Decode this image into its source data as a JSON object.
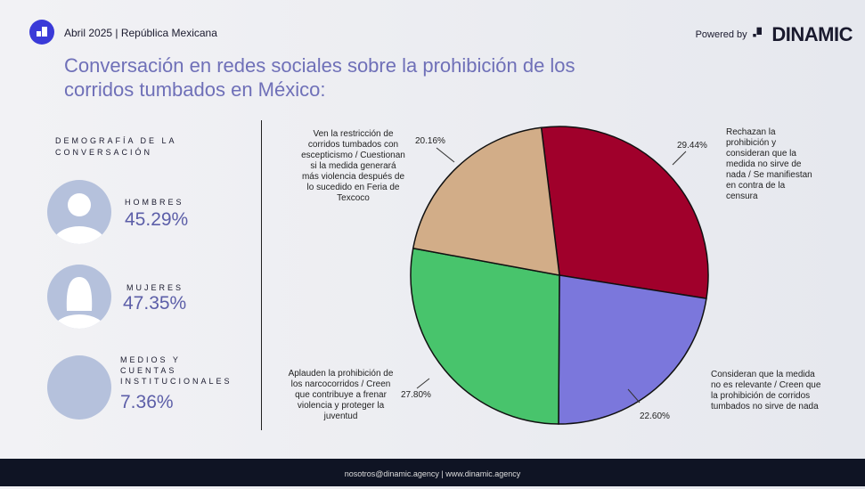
{
  "header": {
    "date_region": "Abril 2025 | República Mexicana",
    "powered_by": "Powered by",
    "brand": "DINAMIC"
  },
  "title": "Conversación en redes sociales sobre la prohibición de los corridos tumbados en México:",
  "demographics": {
    "heading": "DEMOGRAFÍA DE LA CONVERSACIÓN",
    "items": [
      {
        "label": "HOMBRES",
        "value": "45.29%"
      },
      {
        "label": "MUJERES",
        "value": "47.35%"
      },
      {
        "label": "MEDIOS Y CUENTAS INSTITUCIONALES",
        "value": "7.36%"
      }
    ]
  },
  "chart_data": {
    "type": "pie",
    "slices": [
      {
        "label": "Rechazan la prohibición y consideran que la medida no sirve de nada / Se manifiestan en contra de la censura",
        "value": 29.44,
        "display": "29.44%",
        "color": "#a0002b"
      },
      {
        "label": "Consideran que la medida no es relevante / Creen que la prohibición de corridos tumbados no sirve de nada",
        "value": 22.6,
        "display": "22.60%",
        "color": "#7b77dc"
      },
      {
        "label": "Aplauden la prohibición de los narcocorridos / Creen que contribuye a frenar violencia y proteger la juventud",
        "value": 27.8,
        "display": "27.80%",
        "color": "#48c46c"
      },
      {
        "label": "Ven la restricción de corridos tumbados con escepticismo / Cuestionan si la medida generará más violencia después de lo sucedido en Feria de Texcoco",
        "value": 20.16,
        "display": "20.16%",
        "color": "#d2ad88"
      }
    ]
  },
  "footer": "nosotros@dinamic.agency | www.dinamic.agency"
}
